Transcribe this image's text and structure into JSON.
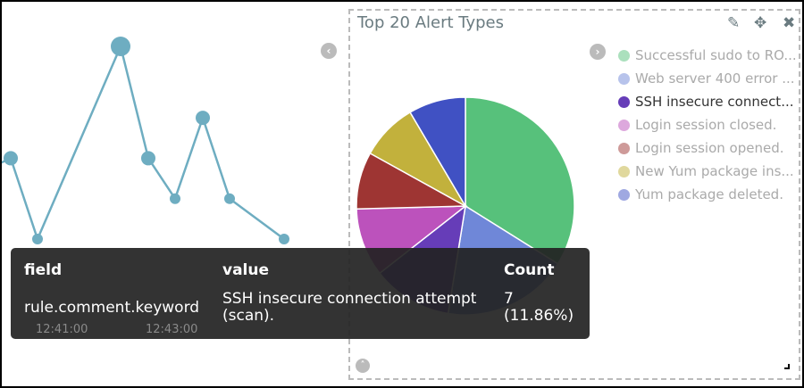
{
  "line_chart": {
    "color": "#6eadc1",
    "x_ticks": [
      "12:41:00",
      "12:43:00"
    ],
    "values": [
      3.2,
      3.6,
      1.0,
      7.2,
      3.6,
      2.3,
      4.9,
      2.3,
      1.0
    ]
  },
  "panel": {
    "title": "Top 20 Alert Types",
    "icons": [
      "pencil-icon",
      "move-icon",
      "close-icon"
    ]
  },
  "chart_data": {
    "type": "pie",
    "title": "Top 20 Alert Types",
    "slices": [
      {
        "label": "Successful sudo to RO...",
        "value": 20,
        "color": "#57c17b"
      },
      {
        "label": "Web server 400 error ...",
        "value": 11,
        "color": "#6f87d8"
      },
      {
        "label": "SSH insecure connect...",
        "value": 7,
        "color": "#663db8"
      },
      {
        "label": "Login session closed.",
        "value": 6,
        "color": "#bc52bc"
      },
      {
        "label": "Login session opened.",
        "value": 5,
        "color": "#9e3533"
      },
      {
        "label": "New Yum package ins...",
        "value": 5,
        "color": "#c2b13c"
      },
      {
        "label": "Yum package deleted.",
        "value": 5,
        "color": "#4051c3"
      }
    ],
    "legend_position": "right",
    "highlighted": 2
  },
  "tooltip": {
    "headers": [
      "field",
      "value",
      "Count"
    ],
    "field": "rule.comment.keyword",
    "value_line1": "SSH insecure connection attempt",
    "value_line2": "(scan).",
    "count": "7",
    "percent": "(11.86%)"
  }
}
